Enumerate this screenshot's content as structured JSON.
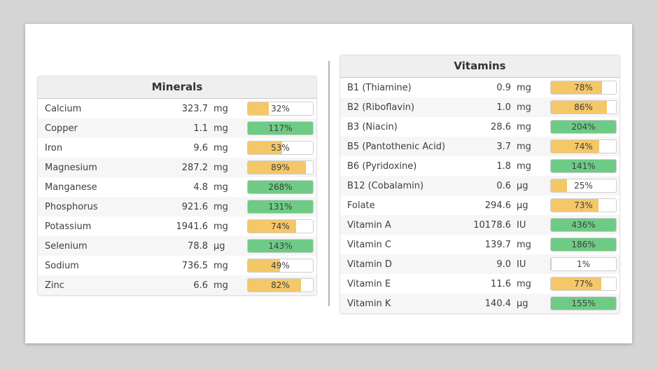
{
  "page": {
    "background_color": "#d5d5d5",
    "card_color": "#ffffff"
  },
  "colors": {
    "partial_orange": "#f4c768",
    "complete_green": "#6ecb86",
    "bar_border": "#cfcfcf",
    "header_bg": "#efefef",
    "alt_row_bg": "#f6f6f7",
    "text": "#3d3d3d"
  },
  "tables": [
    {
      "id": "minerals",
      "title": "Minerals",
      "rows": [
        {
          "name": "Calcium",
          "value": "323.7",
          "unit": "mg",
          "percent": 32,
          "percent_label": "32%"
        },
        {
          "name": "Copper",
          "value": "1.1",
          "unit": "mg",
          "percent": 117,
          "percent_label": "117%"
        },
        {
          "name": "Iron",
          "value": "9.6",
          "unit": "mg",
          "percent": 53,
          "percent_label": "53%"
        },
        {
          "name": "Magnesium",
          "value": "287.2",
          "unit": "mg",
          "percent": 89,
          "percent_label": "89%"
        },
        {
          "name": "Manganese",
          "value": "4.8",
          "unit": "mg",
          "percent": 268,
          "percent_label": "268%"
        },
        {
          "name": "Phosphorus",
          "value": "921.6",
          "unit": "mg",
          "percent": 131,
          "percent_label": "131%"
        },
        {
          "name": "Potassium",
          "value": "1941.6",
          "unit": "mg",
          "percent": 74,
          "percent_label": "74%"
        },
        {
          "name": "Selenium",
          "value": "78.8",
          "unit": "µg",
          "percent": 143,
          "percent_label": "143%"
        },
        {
          "name": "Sodium",
          "value": "736.5",
          "unit": "mg",
          "percent": 49,
          "percent_label": "49%"
        },
        {
          "name": "Zinc",
          "value": "6.6",
          "unit": "mg",
          "percent": 82,
          "percent_label": "82%"
        }
      ]
    },
    {
      "id": "vitamins",
      "title": "Vitamins",
      "rows": [
        {
          "name": "B1 (Thiamine)",
          "value": "0.9",
          "unit": "mg",
          "percent": 78,
          "percent_label": "78%"
        },
        {
          "name": "B2 (Riboflavin)",
          "value": "1.0",
          "unit": "mg",
          "percent": 86,
          "percent_label": "86%"
        },
        {
          "name": "B3 (Niacin)",
          "value": "28.6",
          "unit": "mg",
          "percent": 204,
          "percent_label": "204%"
        },
        {
          "name": "B5 (Pantothenic Acid)",
          "value": "3.7",
          "unit": "mg",
          "percent": 74,
          "percent_label": "74%"
        },
        {
          "name": "B6 (Pyridoxine)",
          "value": "1.8",
          "unit": "mg",
          "percent": 141,
          "percent_label": "141%"
        },
        {
          "name": "B12 (Cobalamin)",
          "value": "0.6",
          "unit": "µg",
          "percent": 25,
          "percent_label": "25%"
        },
        {
          "name": "Folate",
          "value": "294.6",
          "unit": "µg",
          "percent": 73,
          "percent_label": "73%"
        },
        {
          "name": "Vitamin A",
          "value": "10178.6",
          "unit": "IU",
          "percent": 436,
          "percent_label": "436%"
        },
        {
          "name": "Vitamin C",
          "value": "139.7",
          "unit": "mg",
          "percent": 186,
          "percent_label": "186%"
        },
        {
          "name": "Vitamin D",
          "value": "9.0",
          "unit": "IU",
          "percent": 1,
          "percent_label": "1%"
        },
        {
          "name": "Vitamin E",
          "value": "11.6",
          "unit": "mg",
          "percent": 77,
          "percent_label": "77%"
        },
        {
          "name": "Vitamin K",
          "value": "140.4",
          "unit": "µg",
          "percent": 155,
          "percent_label": "155%"
        }
      ]
    }
  ]
}
